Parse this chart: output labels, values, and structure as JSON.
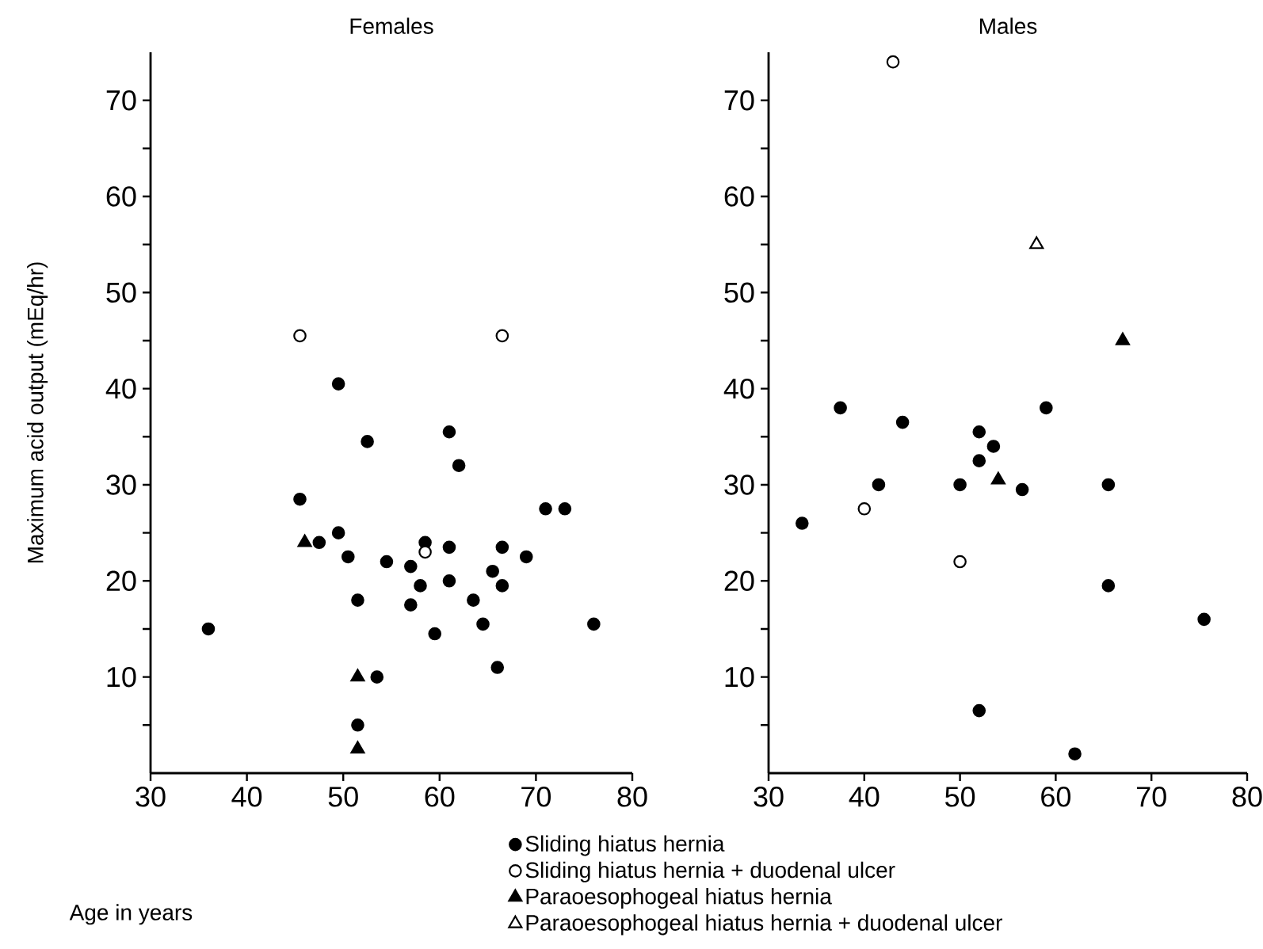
{
  "chart_data": [
    {
      "type": "scatter",
      "title": "Females",
      "xlabel": "Age in years",
      "ylabel": "Maximum acid output (mEq/hr)",
      "xlim": [
        30,
        80
      ],
      "ylim": [
        0,
        75
      ],
      "xticks": [
        30,
        40,
        50,
        60,
        70,
        80
      ],
      "yticks": [
        {
          "value": 5,
          "label": null
        },
        10,
        {
          "value": 15,
          "label": null
        },
        20,
        {
          "value": 25,
          "label": null
        },
        30,
        {
          "value": 35,
          "label": null
        },
        40,
        {
          "value": 45,
          "label": null
        },
        50,
        {
          "value": 55,
          "label": null
        },
        60,
        {
          "value": 65,
          "label": null
        },
        70
      ],
      "series": [
        {
          "color": "#000000",
          "marker": "circle",
          "x": [
            36,
            45.5,
            47.5,
            49.5,
            49.5,
            50.5,
            51.5,
            52.5,
            53.5,
            51.5,
            54.5,
            57,
            57,
            58,
            58.5,
            59.5,
            61,
            61,
            61,
            62,
            63.5,
            64.5,
            65.5,
            66,
            66.5,
            66.5,
            69,
            71,
            73,
            76
          ],
          "values": [
            15,
            28.5,
            24,
            25,
            40.5,
            22.5,
            18,
            34.5,
            10,
            5,
            22,
            17.5,
            21.5,
            19.5,
            24,
            14.5,
            23.5,
            20,
            35.5,
            32,
            18,
            15.5,
            21,
            11,
            19.5,
            23.5,
            22.5,
            27.5,
            27.5,
            15.5
          ]
        },
        {
          "color": "#ffffff",
          "marker": "circle",
          "x": [
            45.5,
            66.5,
            58.5
          ],
          "values": [
            45.5,
            45.5,
            23
          ]
        },
        {
          "color": "#000000",
          "marker": "triangle",
          "x": [
            46,
            51.5,
            51.5
          ],
          "values": [
            24,
            10,
            2.5
          ]
        }
      ]
    },
    {
      "type": "scatter",
      "title": "Males",
      "xlim": [
        30,
        80
      ],
      "ylim": [
        0,
        75
      ],
      "legend": "bottom",
      "xticks": [
        30,
        40,
        50,
        60,
        70,
        80
      ],
      "yticks": [
        {
          "value": 5,
          "label": null
        },
        10,
        {
          "value": 15,
          "label": null
        },
        20,
        {
          "value": 25,
          "label": null
        },
        30,
        {
          "value": 35,
          "label": null
        },
        40,
        {
          "value": 45,
          "label": null
        },
        50,
        {
          "value": 55,
          "label": null
        },
        60,
        {
          "value": 65,
          "label": null
        },
        70
      ],
      "series": [
        {
          "name": "Sliding hiatus hernia",
          "color": "#000000",
          "marker": "circle",
          "x": [
            33.5,
            37.5,
            41.5,
            44,
            50,
            52,
            53.5,
            52,
            56.5,
            59,
            65.5,
            65.5,
            75.5,
            52,
            62
          ],
          "values": [
            26,
            38,
            30,
            36.5,
            30,
            35.5,
            34,
            32.5,
            29.5,
            38,
            30,
            19.5,
            16,
            6.5,
            2
          ]
        },
        {
          "name": "Sliding hiatus hernia + duodenal ulcer",
          "color": "#ffffff",
          "marker": "circle",
          "x": [
            40,
            50,
            43
          ],
          "values": [
            27.5,
            22,
            74
          ]
        },
        {
          "name": "Paraoesophogeal hiatus hernia",
          "color": "#000000",
          "marker": "triangle",
          "x": [
            54,
            67
          ],
          "values": [
            30.5,
            45
          ]
        },
        {
          "name": "Paraoesophogeal hiatus hernia + duodenal ulcer",
          "color": "#ffffff",
          "marker": "triangle",
          "x": [
            58
          ],
          "values": [
            55
          ]
        }
      ]
    }
  ]
}
